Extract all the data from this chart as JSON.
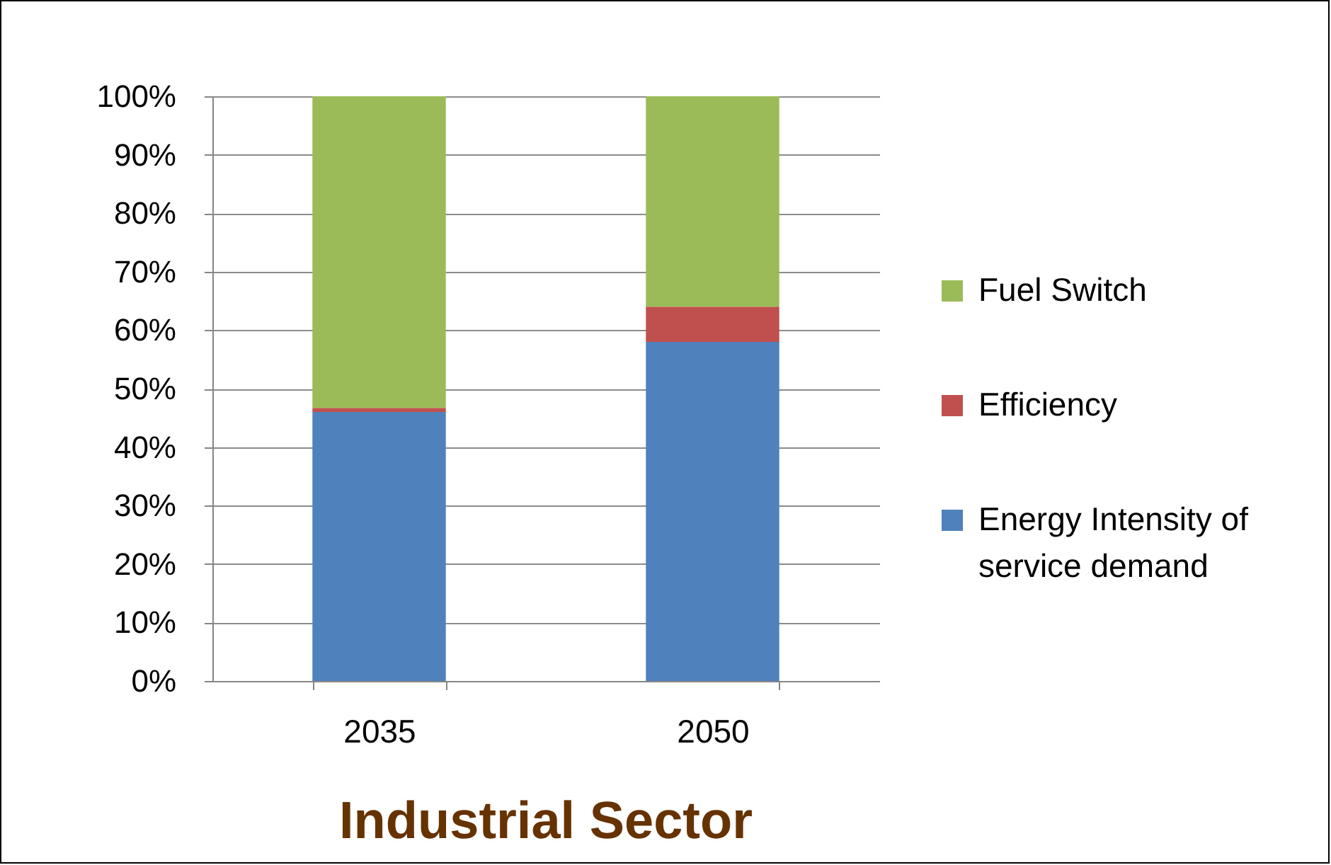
{
  "chart_data": {
    "type": "bar",
    "title": "Industrial Sector",
    "categories": [
      "2035",
      "2050"
    ],
    "stacked": true,
    "series": [
      {
        "name": "Energy Intensity of service demand",
        "color": "#4f81bd",
        "values": [
          46,
          58
        ]
      },
      {
        "name": "Efficiency",
        "color": "#c0504d",
        "values": [
          0.7,
          6
        ]
      },
      {
        "name": "Fuel Switch",
        "color": "#9bbb59",
        "values": [
          53.3,
          36
        ]
      }
    ],
    "ylim": [
      0,
      100
    ],
    "yticks": [
      {
        "value": 0,
        "label": "0%"
      },
      {
        "value": 10,
        "label": "10%"
      },
      {
        "value": 20,
        "label": "20%"
      },
      {
        "value": 30,
        "label": "30%"
      },
      {
        "value": 40,
        "label": "40%"
      },
      {
        "value": 50,
        "label": "50%"
      },
      {
        "value": 60,
        "label": "60%"
      },
      {
        "value": 70,
        "label": "70%"
      },
      {
        "value": 80,
        "label": "80%"
      },
      {
        "value": 90,
        "label": "90%"
      },
      {
        "value": 100,
        "label": "100%"
      }
    ],
    "grid": "y",
    "legend": "right"
  }
}
